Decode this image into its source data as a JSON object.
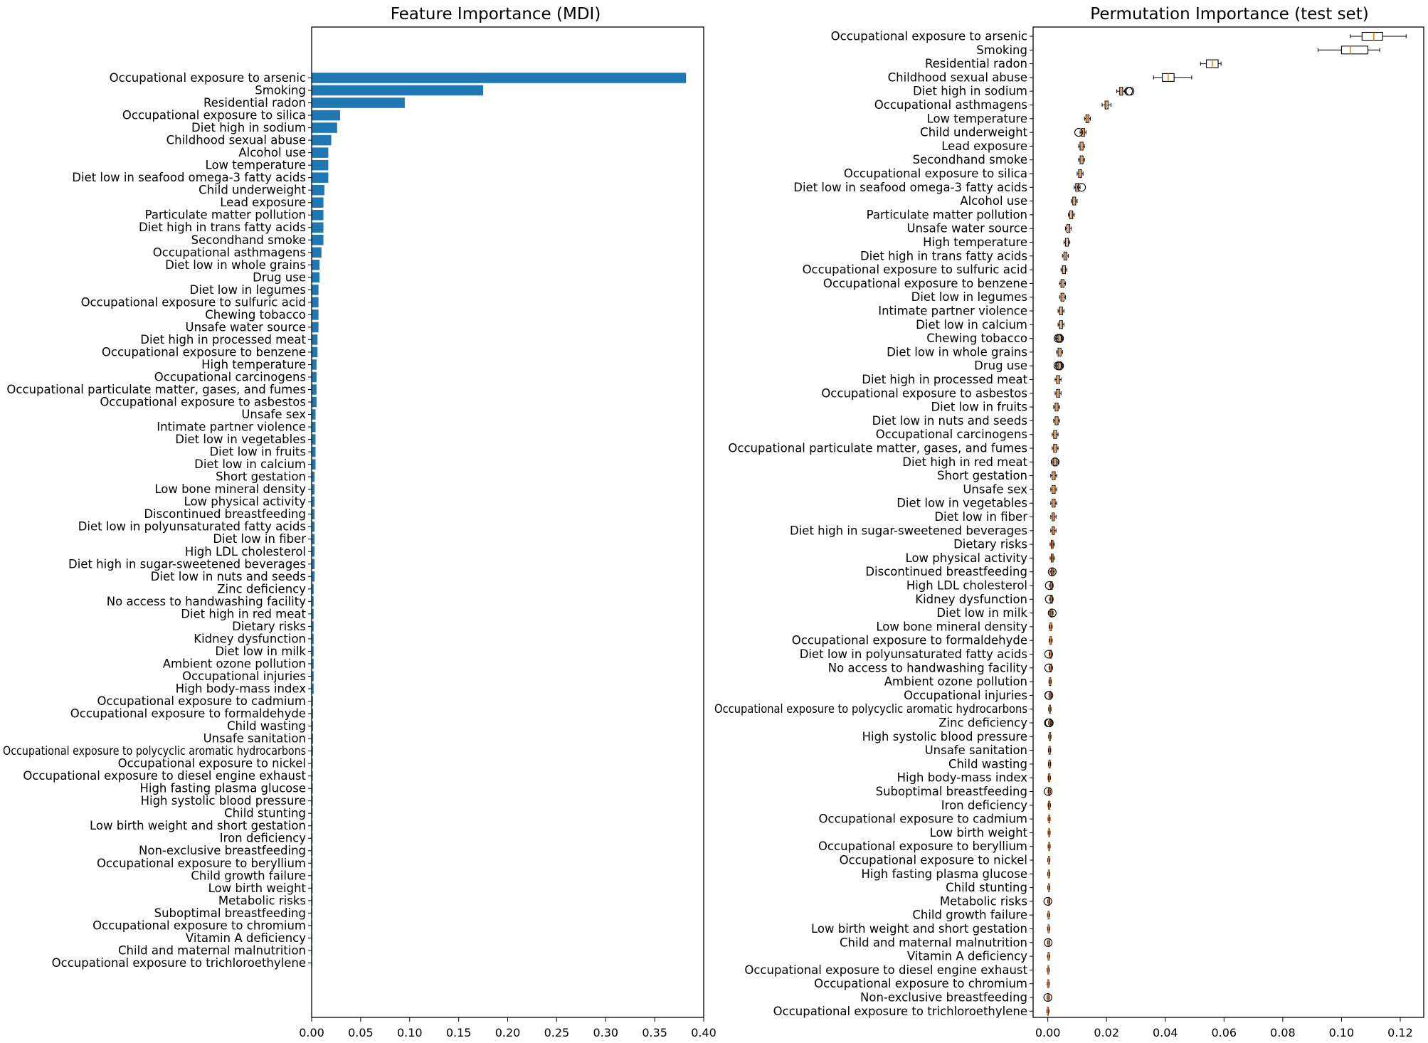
{
  "chart_data": [
    {
      "type": "bar",
      "orientation": "horizontal",
      "title": "Feature Importance (MDI)",
      "xlabel": "",
      "ylabel": "",
      "xlim": [
        0,
        0.4
      ],
      "xticks": [
        "0.00",
        "0.05",
        "0.10",
        "0.15",
        "0.20",
        "0.25",
        "0.30",
        "0.35",
        "0.40"
      ],
      "bar_color": "#1f77b4",
      "categories": [
        "Occupational exposure to arsenic",
        "Smoking",
        "Residential radon",
        "Occupational exposure to silica",
        "Diet high in sodium",
        "Childhood sexual abuse",
        "Alcohol use",
        "Low temperature",
        "Diet low in seafood omega-3 fatty acids",
        "Child underweight",
        "Lead exposure",
        "Particulate matter pollution",
        "Diet high in trans fatty acids",
        "Secondhand smoke",
        "Occupational asthmagens",
        "Diet low in whole grains",
        "Drug use",
        "Diet low in legumes",
        "Occupational exposure to sulfuric acid",
        "Chewing tobacco",
        "Unsafe water source",
        "Diet high in processed meat",
        "Occupational exposure to benzene",
        "High temperature",
        "Occupational carcinogens",
        "Occupational particulate matter, gases, and fumes",
        "Occupational exposure to asbestos",
        "Unsafe sex",
        "Intimate partner violence",
        "Diet low in vegetables",
        "Diet low in fruits",
        "Diet low in calcium",
        "Short gestation",
        "Low bone mineral density",
        "Low physical activity",
        "Discontinued breastfeeding",
        "Diet low in polyunsaturated fatty acids",
        "Diet low in fiber",
        "High LDL cholesterol",
        "Diet high in sugar-sweetened beverages",
        "Diet low in nuts and seeds",
        "Zinc deficiency",
        "No access to handwashing facility",
        "Diet high in red meat",
        "Dietary risks",
        "Kidney dysfunction",
        "Diet low in milk",
        "Ambient ozone pollution",
        "Occupational injuries",
        "High body-mass index",
        "Occupational exposure to cadmium",
        "Occupational exposure to formaldehyde",
        "Child wasting",
        "Unsafe sanitation",
        "Occupational exposure to polycyclic aromatic hydrocarbons",
        "Occupational exposure to nickel",
        "Occupational exposure to diesel engine exhaust",
        "High fasting plasma glucose",
        "High systolic blood pressure",
        "Child stunting",
        "Low birth weight and short gestation",
        "Iron deficiency",
        "Non-exclusive breastfeeding",
        "Occupational exposure to beryllium",
        "Child growth failure",
        "Low birth weight",
        "Metabolic risks",
        "Suboptimal breastfeeding",
        "Occupational exposure to chromium",
        "Vitamin A deficiency",
        "Child and maternal malnutrition",
        "Occupational exposure to trichloroethylene"
      ],
      "values": [
        0.382,
        0.175,
        0.095,
        0.029,
        0.026,
        0.02,
        0.017,
        0.017,
        0.017,
        0.013,
        0.012,
        0.012,
        0.012,
        0.012,
        0.01,
        0.008,
        0.008,
        0.007,
        0.007,
        0.007,
        0.007,
        0.006,
        0.006,
        0.005,
        0.005,
        0.005,
        0.005,
        0.004,
        0.004,
        0.004,
        0.004,
        0.004,
        0.003,
        0.003,
        0.003,
        0.003,
        0.003,
        0.003,
        0.003,
        0.003,
        0.003,
        0.002,
        0.002,
        0.002,
        0.002,
        0.002,
        0.002,
        0.002,
        0.002,
        0.002,
        0.0015,
        0.0015,
        0.0015,
        0.0015,
        0.0015,
        0.0012,
        0.0012,
        0.0012,
        0.0012,
        0.001,
        0.001,
        0.001,
        0.001,
        0.001,
        0.001,
        0.001,
        0.001,
        0.0008,
        0.0008,
        0.0008,
        0.0008,
        0.0006
      ]
    },
    {
      "type": "boxplot",
      "orientation": "horizontal",
      "title": "Permutation Importance (test set)",
      "xlabel": "",
      "ylabel": "",
      "xlim": [
        -0.005,
        0.128
      ],
      "xticks": [
        "0.00",
        "0.02",
        "0.04",
        "0.06",
        "0.08",
        "0.10",
        "0.12"
      ],
      "box_color": "#000000",
      "median_color": "#ff7f0e",
      "categories": [
        "Occupational exposure to arsenic",
        "Smoking",
        "Residential radon",
        "Childhood sexual abuse",
        "Diet high in sodium",
        "Occupational asthmagens",
        "Low temperature",
        "Child underweight",
        "Lead exposure",
        "Secondhand smoke",
        "Occupational exposure to silica",
        "Diet low in seafood omega-3 fatty acids",
        "Alcohol use",
        "Particulate matter pollution",
        "Unsafe water source",
        "High temperature",
        "Diet high in trans fatty acids",
        "Occupational exposure to sulfuric acid",
        "Occupational exposure to benzene",
        "Diet low in legumes",
        "Intimate partner violence",
        "Diet low in calcium",
        "Chewing tobacco",
        "Diet low in whole grains",
        "Drug use",
        "Diet high in processed meat",
        "Occupational exposure to asbestos",
        "Diet low in fruits",
        "Diet low in nuts and seeds",
        "Occupational carcinogens",
        "Occupational particulate matter, gases, and fumes",
        "Diet high in red meat",
        "Short gestation",
        "Unsafe sex",
        "Diet low in vegetables",
        "Diet low in fiber",
        "Diet high in sugar-sweetened beverages",
        "Dietary risks",
        "Low physical activity",
        "Discontinued breastfeeding",
        "High LDL cholesterol",
        "Kidney dysfunction",
        "Diet low in milk",
        "Low bone mineral density",
        "Occupational exposure to formaldehyde",
        "Diet low in polyunsaturated fatty acids",
        "No access to handwashing facility",
        "Ambient ozone pollution",
        "Occupational injuries",
        "Occupational exposure to polycyclic aromatic hydrocarbons",
        "Zinc deficiency",
        "High systolic blood pressure",
        "Unsafe sanitation",
        "Child wasting",
        "High body-mass index",
        "Suboptimal breastfeeding",
        "Iron deficiency",
        "Occupational exposure to cadmium",
        "Low birth weight",
        "Occupational exposure to beryllium",
        "Occupational exposure to nickel",
        "High fasting plasma glucose",
        "Child stunting",
        "Metabolic risks",
        "Child growth failure",
        "Low birth weight and short gestation",
        "Child and maternal malnutrition",
        "Vitamin A deficiency",
        "Occupational exposure to diesel engine exhaust",
        "Occupational exposure to chromium",
        "Non-exclusive breastfeeding",
        "Occupational exposure to trichloroethylene"
      ],
      "medians": [
        0.111,
        0.103,
        0.056,
        0.041,
        0.025,
        0.02,
        0.0135,
        0.012,
        0.0115,
        0.0115,
        0.011,
        0.01,
        0.009,
        0.008,
        0.007,
        0.0065,
        0.006,
        0.0055,
        0.005,
        0.005,
        0.0045,
        0.0045,
        0.004,
        0.004,
        0.004,
        0.0035,
        0.0035,
        0.003,
        0.003,
        0.0025,
        0.0025,
        0.0025,
        0.002,
        0.002,
        0.002,
        0.0018,
        0.0018,
        0.0015,
        0.0015,
        0.0015,
        0.0012,
        0.0012,
        0.0012,
        0.001,
        0.001,
        0.001,
        0.001,
        0.0008,
        0.0008,
        0.0007,
        0.0007,
        0.0007,
        0.0006,
        0.0006,
        0.0005,
        0.0005,
        0.0005,
        0.0004,
        0.0004,
        0.0004,
        0.0003,
        0.0003,
        0.0003,
        0.0003,
        0.0002,
        0.0002,
        0.0002,
        0.0002,
        0.0001,
        0.0001,
        0.0001,
        0.0
      ],
      "q1": [
        0.107,
        0.1,
        0.054,
        0.039,
        0.0245,
        0.0195,
        0.013,
        0.0115,
        0.011,
        0.011,
        0.0105,
        0.0095,
        0.0085,
        0.0075,
        0.0065,
        0.006,
        0.0055,
        0.005,
        0.0045,
        0.0045,
        0.004,
        0.004,
        0.0035,
        0.0035,
        0.0035,
        0.003,
        0.003,
        0.0025,
        0.0025,
        0.002,
        0.002,
        0.002,
        0.0015,
        0.0015,
        0.0015,
        0.0015,
        0.0015,
        0.0012,
        0.0012,
        0.0012,
        0.001,
        0.001,
        0.001,
        0.0008,
        0.0008,
        0.0008,
        0.0008,
        0.0006,
        0.0006,
        0.0005,
        0.0005,
        0.0005,
        0.0004,
        0.0004,
        0.0003,
        0.0003,
        0.0003,
        0.0003,
        0.0003,
        0.0003,
        0.0002,
        0.0002,
        0.0002,
        0.0002,
        0.0001,
        0.0001,
        0.0001,
        0.0001,
        0.0,
        0.0,
        0.0,
        -0.0001
      ],
      "q3": [
        0.114,
        0.109,
        0.058,
        0.043,
        0.0255,
        0.0205,
        0.014,
        0.0125,
        0.012,
        0.012,
        0.0115,
        0.0105,
        0.0095,
        0.0085,
        0.0075,
        0.007,
        0.0065,
        0.006,
        0.0055,
        0.0055,
        0.005,
        0.005,
        0.0045,
        0.0045,
        0.0045,
        0.004,
        0.004,
        0.0035,
        0.0035,
        0.003,
        0.003,
        0.003,
        0.0025,
        0.0025,
        0.0025,
        0.0022,
        0.0022,
        0.0018,
        0.0018,
        0.0018,
        0.0015,
        0.0015,
        0.0015,
        0.0012,
        0.0012,
        0.0012,
        0.0012,
        0.001,
        0.001,
        0.0009,
        0.0009,
        0.0009,
        0.0008,
        0.0008,
        0.0007,
        0.0007,
        0.0007,
        0.0006,
        0.0006,
        0.0006,
        0.0005,
        0.0005,
        0.0005,
        0.0005,
        0.0004,
        0.0004,
        0.0004,
        0.0004,
        0.0003,
        0.0003,
        0.0003,
        0.0002
      ],
      "whisker_low": [
        0.103,
        0.092,
        0.052,
        0.036,
        0.0235,
        0.0185,
        0.0125,
        0.011,
        0.0105,
        0.0105,
        0.01,
        0.009,
        0.008,
        0.007,
        0.006,
        0.0055,
        0.005,
        0.0045,
        0.004,
        0.004,
        0.0035,
        0.0035,
        0.003,
        0.003,
        0.003,
        0.0025,
        0.0025,
        0.002,
        0.002,
        0.0015,
        0.0015,
        0.0015,
        0.001,
        0.001,
        0.001,
        0.001,
        0.001,
        0.0008,
        0.0008,
        0.0008,
        0.0006,
        0.0006,
        0.0006,
        0.0005,
        0.0005,
        0.0005,
        0.0005,
        0.0004,
        0.0004,
        0.0003,
        0.0003,
        0.0003,
        0.0002,
        0.0002,
        0.0001,
        0.0001,
        0.0001,
        0.0001,
        0.0001,
        0.0001,
        0.0,
        0.0,
        0.0,
        0.0,
        -0.0001,
        -0.0001,
        -0.0001,
        -0.0001,
        -0.0002,
        -0.0002,
        -0.0002,
        -0.0003
      ],
      "whisker_high": [
        0.122,
        0.113,
        0.059,
        0.049,
        0.0265,
        0.0215,
        0.0145,
        0.013,
        0.0125,
        0.0125,
        0.012,
        0.011,
        0.01,
        0.009,
        0.008,
        0.0075,
        0.007,
        0.0065,
        0.006,
        0.006,
        0.0055,
        0.0055,
        0.005,
        0.005,
        0.005,
        0.0045,
        0.0045,
        0.004,
        0.004,
        0.0035,
        0.0035,
        0.0035,
        0.003,
        0.003,
        0.003,
        0.0028,
        0.0028,
        0.0022,
        0.0022,
        0.0022,
        0.0018,
        0.0018,
        0.0018,
        0.0015,
        0.0015,
        0.0015,
        0.0015,
        0.0012,
        0.0012,
        0.0011,
        0.0011,
        0.0011,
        0.001,
        0.001,
        0.0009,
        0.0009,
        0.0009,
        0.0008,
        0.0008,
        0.0008,
        0.0007,
        0.0007,
        0.0007,
        0.0007,
        0.0006,
        0.0006,
        0.0006,
        0.0006,
        0.0005,
        0.0005,
        0.0005,
        0.0004
      ],
      "outliers": [
        [],
        [],
        [],
        [],
        [
          0.0275,
          0.028
        ],
        [],
        [],
        [
          0.0105
        ],
        [],
        [],
        [],
        [
          0.0115
        ],
        [],
        [],
        [],
        [],
        [],
        [],
        [],
        [],
        [],
        [],
        [
          0.004,
          0.0035
        ],
        [],
        [
          0.0035,
          0.004
        ],
        [],
        [],
        [],
        [],
        [],
        [],
        [
          0.0025
        ],
        [],
        [],
        [],
        [],
        [],
        [],
        [],
        [
          0.0015
        ],
        [
          0.0005
        ],
        [
          0.0005
        ],
        [
          0.0015
        ],
        [],
        [],
        [
          0.0003
        ],
        [
          0.0003
        ],
        [],
        [
          0.0004,
          0.0003
        ],
        [],
        [
          0.0002,
          0.0005
        ],
        [],
        [],
        [],
        [],
        [
          0.0001
        ],
        [],
        [],
        [],
        [],
        [],
        [],
        [],
        [
          0.0
        ],
        [],
        [],
        [
          0.0001
        ],
        [],
        [],
        [],
        [
          0.0
        ],
        []
      ]
    }
  ]
}
